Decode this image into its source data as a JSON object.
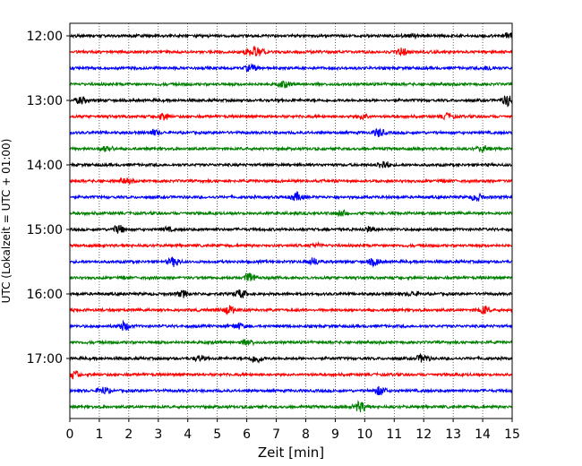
{
  "chart_data": {
    "type": "line",
    "title": "",
    "xlabel": "Zeit  [min]",
    "ylabel": "UTC (Lokalzeit = UTC + 01:00)",
    "xlim": [
      0,
      15
    ],
    "xticks": [
      0,
      1,
      2,
      3,
      4,
      5,
      6,
      7,
      8,
      9,
      10,
      11,
      12,
      13,
      14,
      15
    ],
    "grid": "vertical-dotted",
    "trace_interval_min": 15,
    "trace_colors": [
      "#000000",
      "#ff0000",
      "#0000ff",
      "#008000"
    ],
    "y_ticks": [
      {
        "label": "12:00",
        "trace": 0
      },
      {
        "label": "13:00",
        "trace": 4
      },
      {
        "label": "14:00",
        "trace": 8
      },
      {
        "label": "15:00",
        "trace": 12
      },
      {
        "label": "16:00",
        "trace": 16
      },
      {
        "label": "17:00",
        "trace": 20
      }
    ],
    "traces": [
      {
        "start": "12:00"
      },
      {
        "start": "12:15"
      },
      {
        "start": "12:30"
      },
      {
        "start": "12:45"
      },
      {
        "start": "13:00"
      },
      {
        "start": "13:15"
      },
      {
        "start": "13:30"
      },
      {
        "start": "13:45"
      },
      {
        "start": "14:00"
      },
      {
        "start": "14:15"
      },
      {
        "start": "14:30"
      },
      {
        "start": "14:45"
      },
      {
        "start": "15:00"
      },
      {
        "start": "15:15"
      },
      {
        "start": "15:30"
      },
      {
        "start": "15:45"
      },
      {
        "start": "16:00"
      },
      {
        "start": "16:15"
      },
      {
        "start": "16:30"
      },
      {
        "start": "16:45"
      },
      {
        "start": "17:00"
      },
      {
        "start": "17:15"
      },
      {
        "start": "17:30"
      },
      {
        "start": "17:45"
      }
    ]
  }
}
